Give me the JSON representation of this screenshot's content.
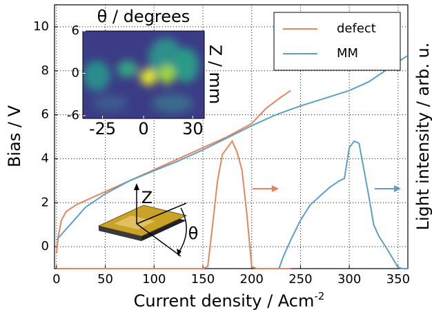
{
  "chart_data": [
    {
      "type": "line",
      "xlabel": "Current density / Acm",
      "xlabel_sup": "-2",
      "ylabel": "Bias / V",
      "y2label": "Light intensity / arb. u.",
      "xlim": [
        -2,
        360
      ],
      "xticks": [
        0,
        50,
        100,
        150,
        200,
        250,
        300,
        350
      ],
      "ylim": [
        -1,
        11
      ],
      "yticks": [
        0,
        2,
        4,
        6,
        8,
        10
      ],
      "y2lim": [
        0,
        12
      ],
      "grid": true,
      "legend": "upper right",
      "annotations": [
        "Z",
        "θ"
      ],
      "series": [
        {
          "name": "defect",
          "color": "#e8845a",
          "x": [
            0,
            2,
            5,
            10,
            20,
            30,
            50,
            75,
            100,
            125,
            150,
            175,
            200,
            215,
            230,
            240
          ],
          "values": [
            -0.3,
            0.5,
            1.2,
            1.6,
            1.9,
            2.1,
            2.5,
            3.0,
            3.5,
            4.0,
            4.5,
            5.0,
            5.6,
            6.3,
            6.8,
            7.1
          ]
        },
        {
          "name": "MM",
          "color": "#5b9fc8",
          "x": [
            0,
            10,
            20,
            30,
            50,
            75,
            100,
            125,
            150,
            175,
            200,
            225,
            250,
            275,
            300,
            320,
            340,
            360
          ],
          "values": [
            0.3,
            0.8,
            1.3,
            1.8,
            2.4,
            3.0,
            3.45,
            3.9,
            4.4,
            4.95,
            5.5,
            6.0,
            6.4,
            6.75,
            7.1,
            7.5,
            8.1,
            8.7
          ]
        }
      ],
      "light_series": [
        {
          "color": "#e8845a",
          "axis": "y2",
          "x": [
            0,
            150,
            155,
            160,
            165,
            170,
            175,
            180,
            185,
            190,
            195,
            200,
            205,
            240
          ],
          "values": [
            0,
            0,
            0.1,
            2,
            4,
            5.2,
            5.5,
            5.8,
            5.3,
            4.5,
            2.5,
            0.1,
            0,
            0
          ]
        },
        {
          "color": "#5b9fc8",
          "axis": "y2",
          "x": [
            228,
            232,
            240,
            250,
            260,
            270,
            280,
            290,
            295,
            300,
            305,
            310,
            315,
            320,
            325,
            330,
            340,
            350,
            355,
            360
          ],
          "values": [
            0,
            0.5,
            1.3,
            2.2,
            2.9,
            3.3,
            3.7,
            4.0,
            4.1,
            5.5,
            5.8,
            5.7,
            4.5,
            3.3,
            2,
            1.5,
            0.8,
            0.05,
            0,
            0
          ]
        }
      ]
    },
    {
      "type": "heatmap",
      "title": "θ / degrees",
      "ylabel": "Z / mm",
      "xlim": [
        -37,
        37
      ],
      "xticks": [
        -25,
        0,
        30
      ],
      "ylim": [
        -6.4,
        6
      ],
      "yticks": [
        6,
        0,
        -6
      ]
    }
  ]
}
